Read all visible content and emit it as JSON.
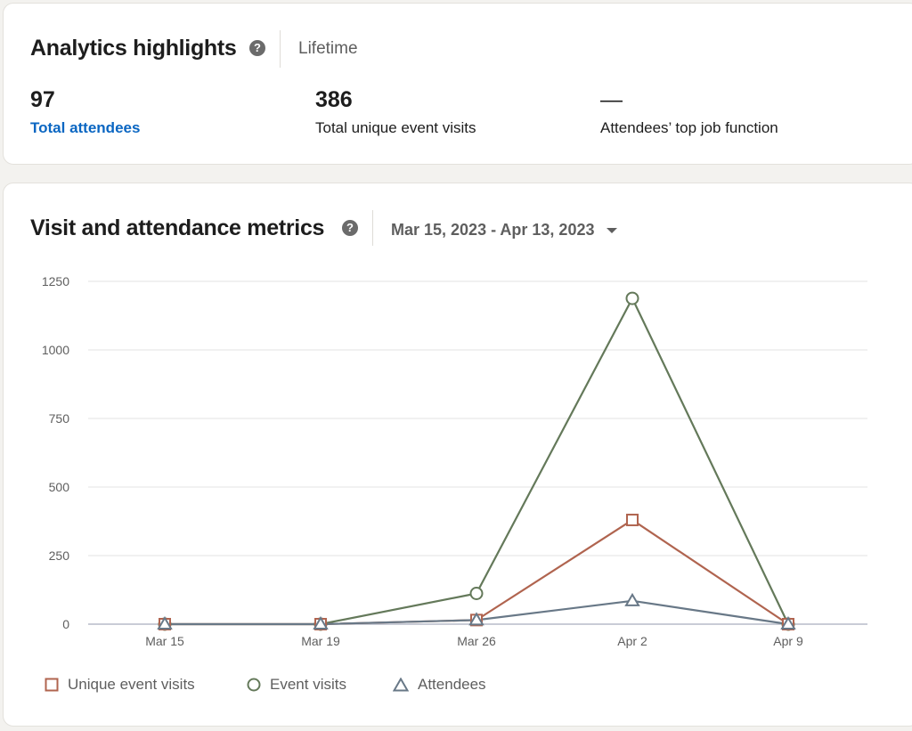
{
  "highlights": {
    "title": "Analytics highlights",
    "help_glyph": "?",
    "period": "Lifetime",
    "stats": [
      {
        "value": "97",
        "label": "Total attendees"
      },
      {
        "value": "386",
        "label": "Total unique event visits"
      },
      {
        "value": "—",
        "label": "Attendees’ top job function"
      }
    ]
  },
  "metrics": {
    "title": "Visit and attendance metrics",
    "help_glyph": "?",
    "date_range": "Mar 15, 2023 - Apr 13, 2023"
  },
  "chart_data": {
    "type": "line",
    "categories": [
      "Mar 15",
      "Mar 19",
      "Mar 26",
      "Apr 2",
      "Apr 9"
    ],
    "ylim": [
      0,
      1250
    ],
    "yticks": [
      0,
      250,
      500,
      750,
      1000,
      1250
    ],
    "grid": true,
    "legend_position": "bottom-left",
    "series": [
      {
        "name": "Unique event visits",
        "marker": "square",
        "color": "#b0644f",
        "values": [
          0,
          0,
          15,
          380,
          0
        ]
      },
      {
        "name": "Event visits",
        "marker": "circle",
        "color": "#64795a",
        "values": [
          0,
          0,
          112,
          1188,
          0
        ]
      },
      {
        "name": "Attendees",
        "marker": "triangle",
        "color": "#687887",
        "values": [
          0,
          0,
          15,
          85,
          0
        ]
      }
    ]
  },
  "icons": {
    "help": "question-circle-icon",
    "dropdown": "caret-down-icon"
  },
  "colors": {
    "link": "#0a66c2",
    "background": "#f3f2ef",
    "card": "#ffffff"
  }
}
